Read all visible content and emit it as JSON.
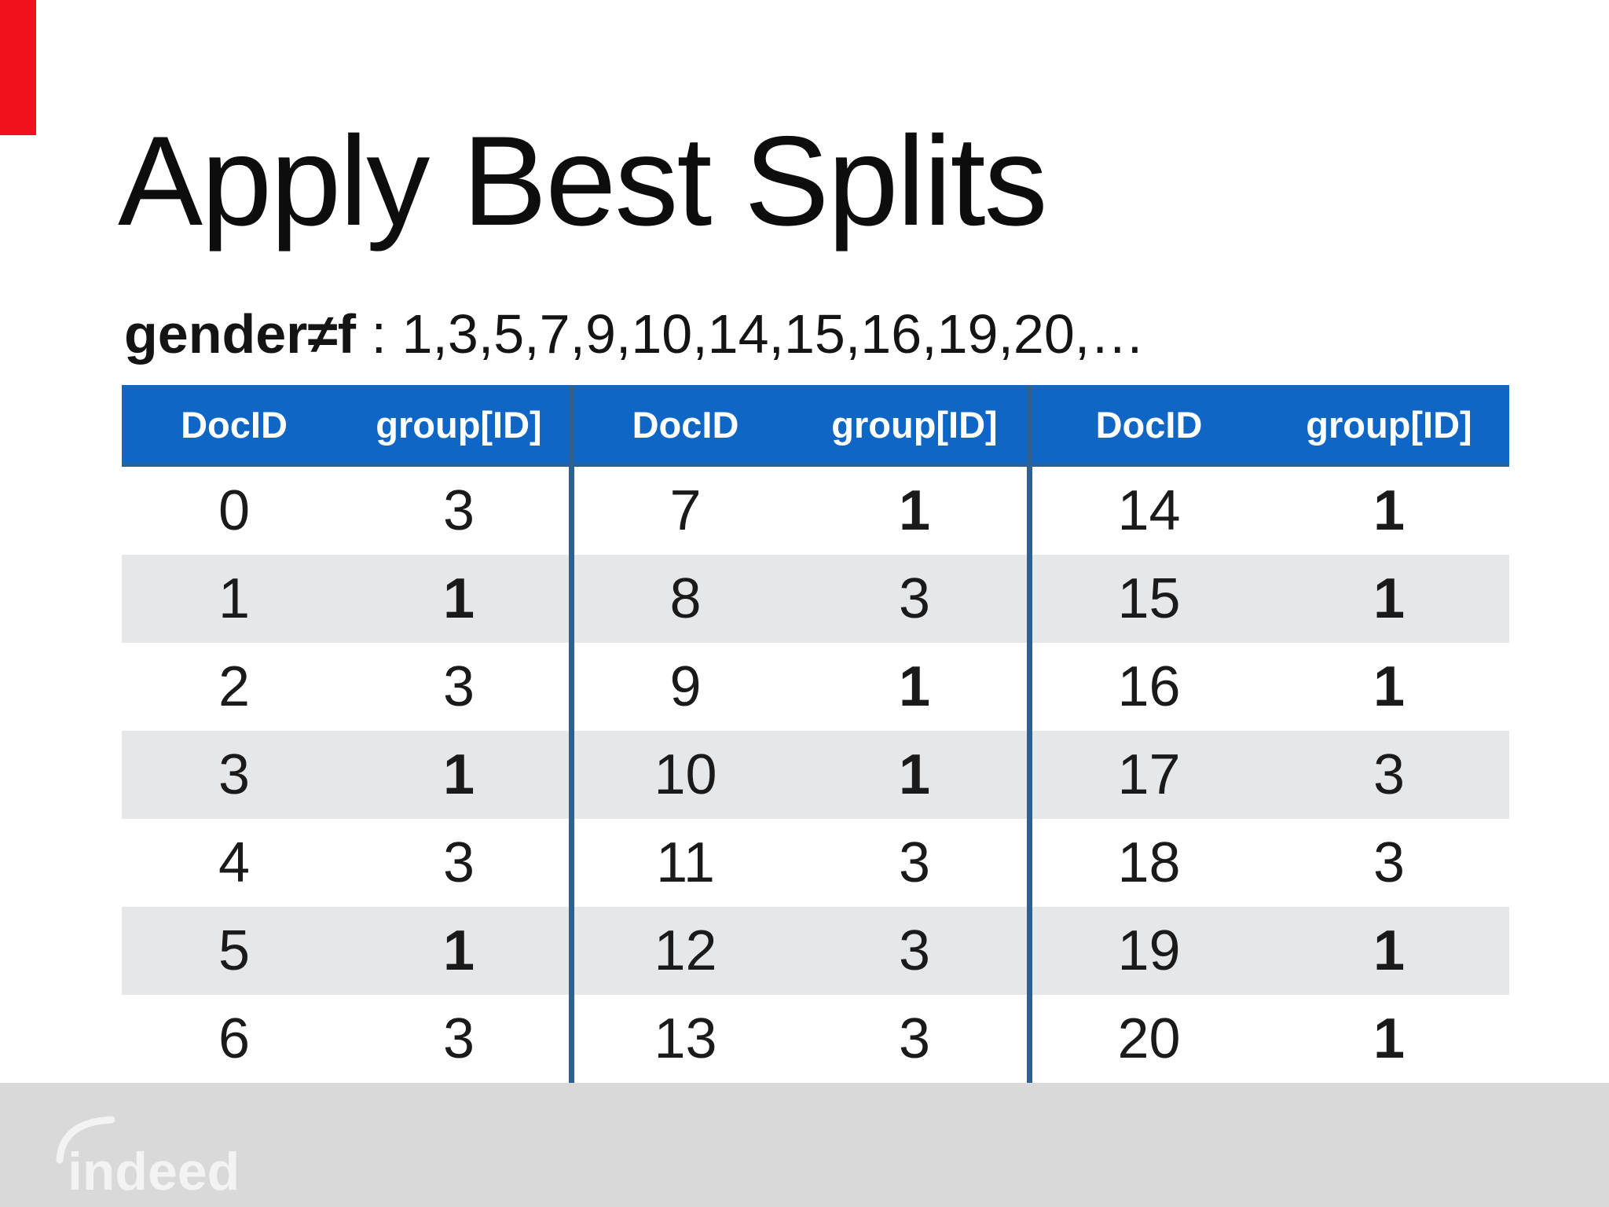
{
  "slide": {
    "title": "Apply Best Splits",
    "subtitle_bold": "gender≠f",
    "subtitle_rest": " : 1,3,5,7,9,10,14,15,16,19,20,…"
  },
  "colors": {
    "accent_red": "#f2101f",
    "header_blue": "#1066c4",
    "divider_blue": "#2e6191",
    "stripe_gray": "#e6e7e9",
    "footer_gray": "#d9d9da",
    "logo_white": "#f3f3f4"
  },
  "table": {
    "headers": [
      "DocID",
      "group[ID]",
      "DocID",
      "group[ID]",
      "DocID",
      "group[ID]"
    ],
    "rows": [
      {
        "cells": [
          {
            "v": "0",
            "bold": false
          },
          {
            "v": "3",
            "bold": false
          },
          {
            "v": "7",
            "bold": false
          },
          {
            "v": "1",
            "bold": true
          },
          {
            "v": "14",
            "bold": false
          },
          {
            "v": "1",
            "bold": true
          }
        ]
      },
      {
        "cells": [
          {
            "v": "1",
            "bold": false
          },
          {
            "v": "1",
            "bold": true
          },
          {
            "v": "8",
            "bold": false
          },
          {
            "v": "3",
            "bold": false
          },
          {
            "v": "15",
            "bold": false
          },
          {
            "v": "1",
            "bold": true
          }
        ]
      },
      {
        "cells": [
          {
            "v": "2",
            "bold": false
          },
          {
            "v": "3",
            "bold": false
          },
          {
            "v": "9",
            "bold": false
          },
          {
            "v": "1",
            "bold": true
          },
          {
            "v": "16",
            "bold": false
          },
          {
            "v": "1",
            "bold": true
          }
        ]
      },
      {
        "cells": [
          {
            "v": "3",
            "bold": false
          },
          {
            "v": "1",
            "bold": true
          },
          {
            "v": "10",
            "bold": false
          },
          {
            "v": "1",
            "bold": true
          },
          {
            "v": "17",
            "bold": false
          },
          {
            "v": "3",
            "bold": false
          }
        ]
      },
      {
        "cells": [
          {
            "v": "4",
            "bold": false
          },
          {
            "v": "3",
            "bold": false
          },
          {
            "v": "11",
            "bold": false
          },
          {
            "v": "3",
            "bold": false
          },
          {
            "v": "18",
            "bold": false
          },
          {
            "v": "3",
            "bold": false
          }
        ]
      },
      {
        "cells": [
          {
            "v": "5",
            "bold": false
          },
          {
            "v": "1",
            "bold": true
          },
          {
            "v": "12",
            "bold": false
          },
          {
            "v": "3",
            "bold": false
          },
          {
            "v": "19",
            "bold": false
          },
          {
            "v": "1",
            "bold": true
          }
        ]
      },
      {
        "cells": [
          {
            "v": "6",
            "bold": false
          },
          {
            "v": "3",
            "bold": false
          },
          {
            "v": "13",
            "bold": false
          },
          {
            "v": "3",
            "bold": false
          },
          {
            "v": "20",
            "bold": false
          },
          {
            "v": "1",
            "bold": true
          }
        ]
      }
    ]
  },
  "footer": {
    "logo": "indeed"
  }
}
